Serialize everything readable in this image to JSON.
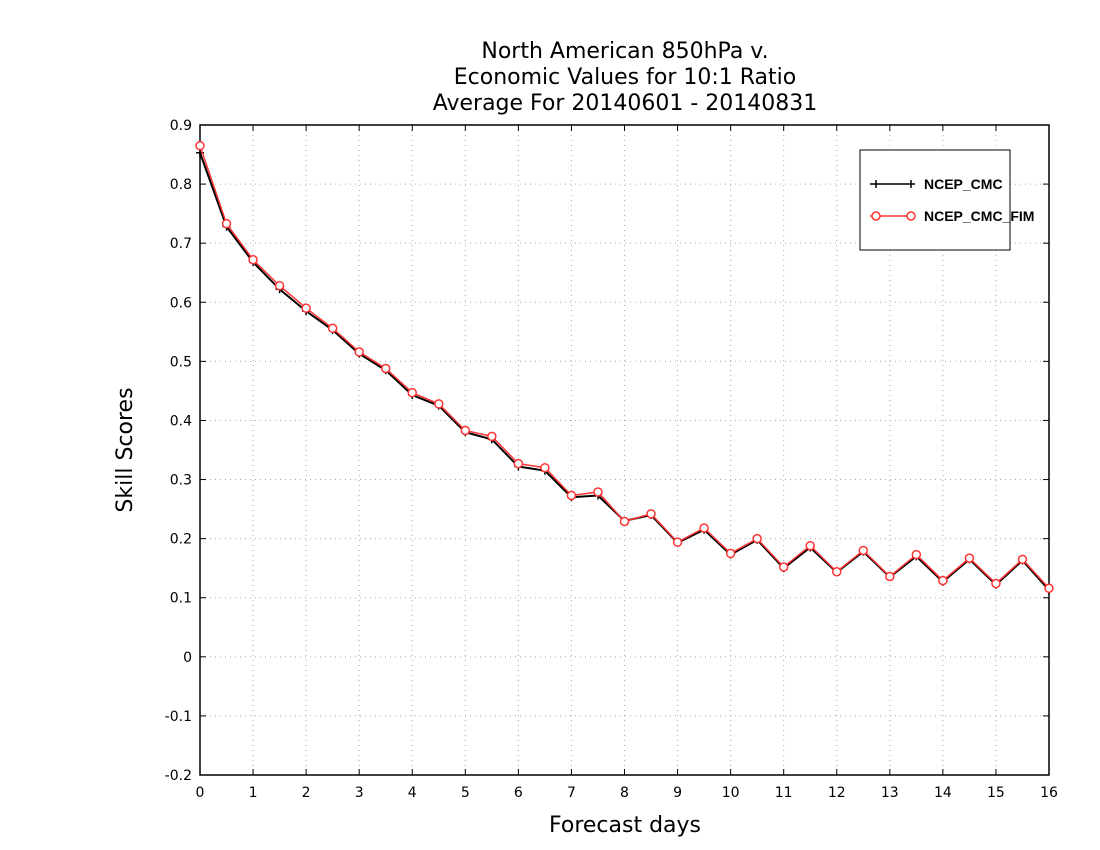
{
  "chart_data": {
    "type": "line",
    "title_lines": [
      "North American 850hPa v.",
      "Economic Values for 10:1 Ratio",
      "Average For 20140601 - 20140831"
    ],
    "xlabel": "Forecast days",
    "ylabel": "Skill Scores",
    "xlim": [
      0,
      16
    ],
    "ylim": [
      -0.2,
      0.9
    ],
    "xticks": [
      "0",
      "1",
      "2",
      "3",
      "4",
      "5",
      "6",
      "7",
      "8",
      "9",
      "10",
      "11",
      "12",
      "13",
      "14",
      "15",
      "16"
    ],
    "yticks": [
      "-0.2",
      "-0.1",
      "0",
      "0.1",
      "0.2",
      "0.3",
      "0.4",
      "0.5",
      "0.6",
      "0.7",
      "0.8",
      "0.9"
    ],
    "grid": true,
    "legend_position": "top-right",
    "x": [
      0,
      0.5,
      1,
      1.5,
      2,
      2.5,
      3,
      3.5,
      4,
      4.5,
      5,
      5.5,
      6,
      6.5,
      7,
      7.5,
      8,
      8.5,
      9,
      9.5,
      10,
      10.5,
      11,
      11.5,
      12,
      12.5,
      13,
      13.5,
      14,
      14.5,
      15,
      15.5,
      16
    ],
    "series": [
      {
        "name": "NCEP_CMC",
        "color": "#000000",
        "marker": "plus",
        "values": [
          0.853,
          0.728,
          0.668,
          0.622,
          0.585,
          0.553,
          0.513,
          0.485,
          0.443,
          0.425,
          0.38,
          0.368,
          0.322,
          0.315,
          0.27,
          0.273,
          0.23,
          0.24,
          0.193,
          0.215,
          0.173,
          0.198,
          0.15,
          0.185,
          0.143,
          0.178,
          0.135,
          0.17,
          0.127,
          0.165,
          0.122,
          0.163,
          0.113
        ]
      },
      {
        "name": "NCEP_CMC_FIM",
        "color": "#ff3333",
        "marker": "circle",
        "values": [
          0.865,
          0.733,
          0.672,
          0.628,
          0.59,
          0.556,
          0.516,
          0.488,
          0.447,
          0.428,
          0.383,
          0.373,
          0.327,
          0.32,
          0.273,
          0.279,
          0.229,
          0.242,
          0.194,
          0.218,
          0.175,
          0.2,
          0.152,
          0.188,
          0.144,
          0.18,
          0.136,
          0.173,
          0.129,
          0.167,
          0.124,
          0.165,
          0.116
        ]
      }
    ]
  }
}
